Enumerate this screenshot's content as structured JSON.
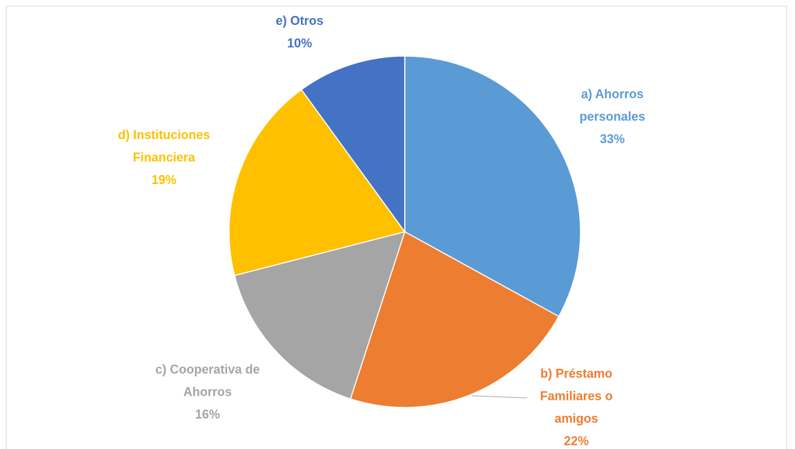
{
  "chart_data": {
    "type": "pie",
    "categories": [
      [
        "a) Ahorros",
        "personales"
      ],
      [
        "b) Préstamo",
        "Familiares o",
        "amigos"
      ],
      [
        "c) Cooperativa de",
        "Ahorros"
      ],
      [
        "d) Instituciones",
        "Financiera"
      ],
      [
        "e) Otros"
      ]
    ],
    "values": [
      33,
      22,
      16,
      19,
      10
    ],
    "value_labels": [
      "33%",
      "22%",
      "16%",
      "19%",
      "10%"
    ],
    "colors": [
      "#5b9bd5",
      "#ed7d31",
      "#a5a5a5",
      "#ffc000",
      "#4472c4"
    ]
  }
}
